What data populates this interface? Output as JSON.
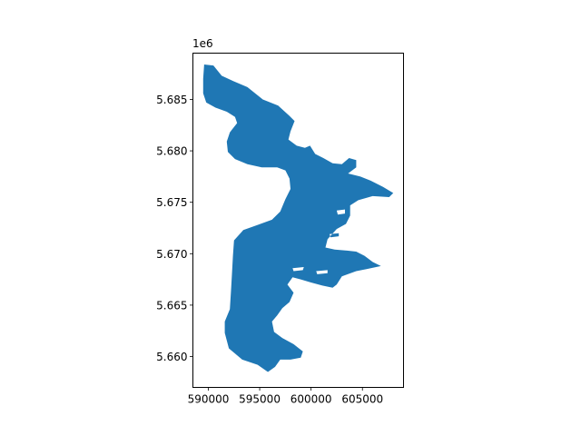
{
  "chart_data": {
    "type": "map",
    "title": "",
    "xlabel": "",
    "ylabel": "",
    "offset_text": "1e6",
    "xlim": [
      588500,
      609000
    ],
    "ylim": [
      5657000,
      5689500
    ],
    "x_ticks": [
      {
        "value": 590000,
        "label": "590000"
      },
      {
        "value": 595000,
        "label": "595000"
      },
      {
        "value": 600000,
        "label": "600000"
      },
      {
        "value": 605000,
        "label": "605000"
      }
    ],
    "y_ticks": [
      {
        "value": 5660000,
        "label": "5.660"
      },
      {
        "value": 5665000,
        "label": "5.665"
      },
      {
        "value": 5670000,
        "label": "5.670"
      },
      {
        "value": 5675000,
        "label": "5.675"
      },
      {
        "value": 5680000,
        "label": "5.680"
      },
      {
        "value": 5685000,
        "label": "5.685"
      }
    ],
    "fill_color": "#1f77b4",
    "polygon": [
      [
        589600,
        5688400
      ],
      [
        590500,
        5688300
      ],
      [
        591300,
        5687300
      ],
      [
        592400,
        5686800
      ],
      [
        593800,
        5686200
      ],
      [
        595300,
        5685000
      ],
      [
        596800,
        5684400
      ],
      [
        597900,
        5683400
      ],
      [
        598400,
        5682900
      ],
      [
        598000,
        5681900
      ],
      [
        597800,
        5681100
      ],
      [
        598600,
        5680500
      ],
      [
        599400,
        5680300
      ],
      [
        599900,
        5680500
      ],
      [
        600400,
        5679700
      ],
      [
        601200,
        5679300
      ],
      [
        602100,
        5678800
      ],
      [
        603000,
        5678700
      ],
      [
        603700,
        5679300
      ],
      [
        604400,
        5679100
      ],
      [
        604400,
        5678400
      ],
      [
        603600,
        5677800
      ],
      [
        604800,
        5677500
      ],
      [
        605800,
        5677100
      ],
      [
        607000,
        5676500
      ],
      [
        608000,
        5675900
      ],
      [
        607600,
        5675500
      ],
      [
        606000,
        5675600
      ],
      [
        604600,
        5675200
      ],
      [
        603800,
        5674700
      ],
      [
        603800,
        5673700
      ],
      [
        603400,
        5672900
      ],
      [
        602500,
        5672400
      ],
      [
        601600,
        5671400
      ],
      [
        601400,
        5670600
      ],
      [
        602300,
        5670400
      ],
      [
        603500,
        5670300
      ],
      [
        604400,
        5670200
      ],
      [
        605200,
        5669800
      ],
      [
        606000,
        5669200
      ],
      [
        606800,
        5668800
      ],
      [
        605400,
        5668500
      ],
      [
        604400,
        5668300
      ],
      [
        603000,
        5667800
      ],
      [
        602500,
        5667000
      ],
      [
        602100,
        5666700
      ],
      [
        601100,
        5666900
      ],
      [
        600000,
        5667200
      ],
      [
        599000,
        5667500
      ],
      [
        598200,
        5667700
      ],
      [
        597700,
        5667000
      ],
      [
        598300,
        5666200
      ],
      [
        597900,
        5665300
      ],
      [
        597200,
        5664700
      ],
      [
        596700,
        5664000
      ],
      [
        596200,
        5663400
      ],
      [
        596400,
        5662400
      ],
      [
        597200,
        5661800
      ],
      [
        598300,
        5661200
      ],
      [
        599200,
        5660500
      ],
      [
        599000,
        5659900
      ],
      [
        598000,
        5659700
      ],
      [
        597000,
        5659700
      ],
      [
        596500,
        5659000
      ],
      [
        595800,
        5658500
      ],
      [
        594800,
        5659200
      ],
      [
        593300,
        5659700
      ],
      [
        592000,
        5660800
      ],
      [
        591600,
        5662300
      ],
      [
        591600,
        5663400
      ],
      [
        592100,
        5664600
      ],
      [
        592200,
        5666300
      ],
      [
        592300,
        5668000
      ],
      [
        592400,
        5669800
      ],
      [
        592500,
        5671300
      ],
      [
        593400,
        5672300
      ],
      [
        594800,
        5672800
      ],
      [
        596200,
        5673300
      ],
      [
        597000,
        5674100
      ],
      [
        597500,
        5675300
      ],
      [
        598000,
        5676300
      ],
      [
        597900,
        5677300
      ],
      [
        597500,
        5678100
      ],
      [
        596700,
        5678400
      ],
      [
        595200,
        5678400
      ],
      [
        593800,
        5678700
      ],
      [
        592600,
        5679200
      ],
      [
        591900,
        5679900
      ],
      [
        591800,
        5680900
      ],
      [
        592100,
        5681800
      ],
      [
        592800,
        5682700
      ],
      [
        592600,
        5683300
      ],
      [
        591800,
        5683800
      ],
      [
        590700,
        5684200
      ],
      [
        589800,
        5684700
      ],
      [
        589500,
        5685600
      ],
      [
        589500,
        5687000
      ]
    ],
    "holes": [
      [
        [
          602500,
          5674200
        ],
        [
          603300,
          5674300
        ],
        [
          603300,
          5673900
        ],
        [
          602600,
          5673800
        ]
      ],
      [
        [
          601800,
          5671900
        ],
        [
          602700,
          5672000
        ],
        [
          602700,
          5671700
        ],
        [
          601900,
          5671600
        ]
      ],
      [
        [
          598200,
          5668600
        ],
        [
          599300,
          5668700
        ],
        [
          599200,
          5668400
        ],
        [
          598300,
          5668300
        ]
      ],
      [
        [
          600500,
          5668300
        ],
        [
          601600,
          5668400
        ],
        [
          601600,
          5668100
        ],
        [
          600600,
          5668000
        ]
      ]
    ]
  }
}
